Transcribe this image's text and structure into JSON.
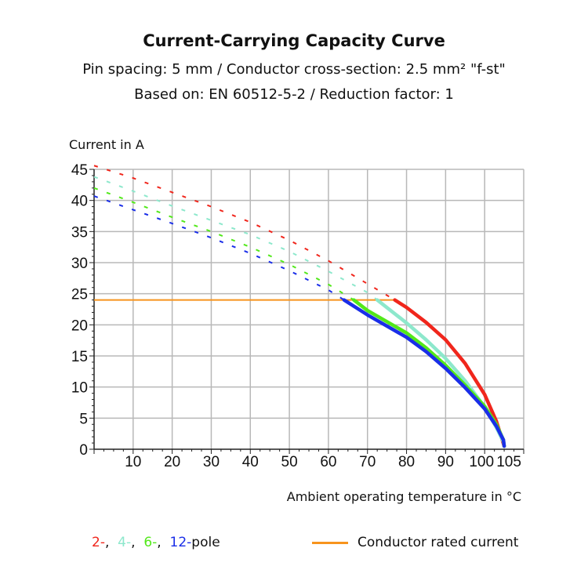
{
  "chart_data": {
    "type": "line",
    "title": "Current-Carrying Capacity Curve",
    "subtitle": [
      "Pin spacing: 5 mm / Conductor cross-section: 2.5 mm² \"f-st\"",
      "Based on: EN 60512-5-2 / Reduction factor: 1"
    ],
    "ylabel": "Current in A",
    "xlabel": "Ambient operating temperature in  °C",
    "xlim": [
      0,
      110
    ],
    "ylim": [
      0,
      45
    ],
    "xticks": [
      10,
      20,
      30,
      40,
      50,
      60,
      70,
      80,
      90,
      100,
      105
    ],
    "yticks": [
      0,
      5,
      10,
      15,
      20,
      25,
      30,
      35,
      40,
      45
    ],
    "grid": true,
    "series": [
      {
        "name": "2-",
        "color": "#f0261c",
        "dashed": [
          [
            0,
            45.6
          ],
          [
            10,
            43.6
          ],
          [
            20,
            41.3
          ],
          [
            30,
            39
          ],
          [
            40,
            36.5
          ],
          [
            50,
            33.6
          ],
          [
            60,
            30.3
          ],
          [
            70,
            26.6
          ],
          [
            77,
            24
          ]
        ],
        "solid": [
          [
            77,
            24
          ],
          [
            80,
            22.8
          ],
          [
            85,
            20.4
          ],
          [
            90,
            17.6
          ],
          [
            95,
            13.8
          ],
          [
            100,
            8.8
          ],
          [
            103,
            4.5
          ],
          [
            104.5,
            1.5
          ],
          [
            105,
            0.5
          ]
        ]
      },
      {
        "name": "4-",
        "color": "#8de8cc",
        "dashed": [
          [
            0,
            43.8
          ],
          [
            10,
            41.5
          ],
          [
            20,
            39.1
          ],
          [
            30,
            36.8
          ],
          [
            40,
            34.5
          ],
          [
            50,
            31.8
          ],
          [
            60,
            28.6
          ],
          [
            70,
            25.2
          ],
          [
            72.5,
            24
          ]
        ],
        "solid": [
          [
            72.5,
            24
          ],
          [
            80,
            20.3
          ],
          [
            85,
            17.6
          ],
          [
            90,
            14.6
          ],
          [
            95,
            11
          ],
          [
            100,
            6.8
          ],
          [
            103,
            3.5
          ],
          [
            104.8,
            1.2
          ],
          [
            105,
            0.5
          ]
        ]
      },
      {
        "name": "6-",
        "color": "#52e81a",
        "dashed": [
          [
            0,
            42
          ],
          [
            10,
            39.7
          ],
          [
            20,
            37.3
          ],
          [
            30,
            35
          ],
          [
            40,
            32.5
          ],
          [
            50,
            29.7
          ],
          [
            60,
            26.5
          ],
          [
            66.5,
            24
          ]
        ],
        "solid": [
          [
            66.5,
            24
          ],
          [
            70,
            22.3
          ],
          [
            80,
            18.7
          ],
          [
            85,
            16.3
          ],
          [
            90,
            13.5
          ],
          [
            95,
            10.3
          ],
          [
            100,
            6.9
          ],
          [
            103,
            4
          ],
          [
            104.8,
            1.5
          ],
          [
            105,
            0.5
          ]
        ]
      },
      {
        "name": "12-",
        "color": "#1a2ee8",
        "dashed": [
          [
            0,
            40.7
          ],
          [
            10,
            38.5
          ],
          [
            20,
            36.3
          ],
          [
            30,
            34
          ],
          [
            40,
            31.5
          ],
          [
            50,
            28.7
          ],
          [
            60,
            25.6
          ],
          [
            64,
            24
          ]
        ],
        "solid": [
          [
            64,
            24
          ],
          [
            70,
            21.6
          ],
          [
            80,
            18
          ],
          [
            85,
            15.7
          ],
          [
            90,
            13
          ],
          [
            95,
            9.9
          ],
          [
            100,
            6.5
          ],
          [
            103,
            3.7
          ],
          [
            104.8,
            1.5
          ],
          [
            105,
            0.5
          ]
        ]
      }
    ],
    "rated_current": {
      "name": "Conductor rated current",
      "color": "#f7941d",
      "y": 24,
      "x": [
        0,
        77
      ]
    },
    "legend": {
      "suffix": "pole",
      "placement": "bottom"
    }
  }
}
